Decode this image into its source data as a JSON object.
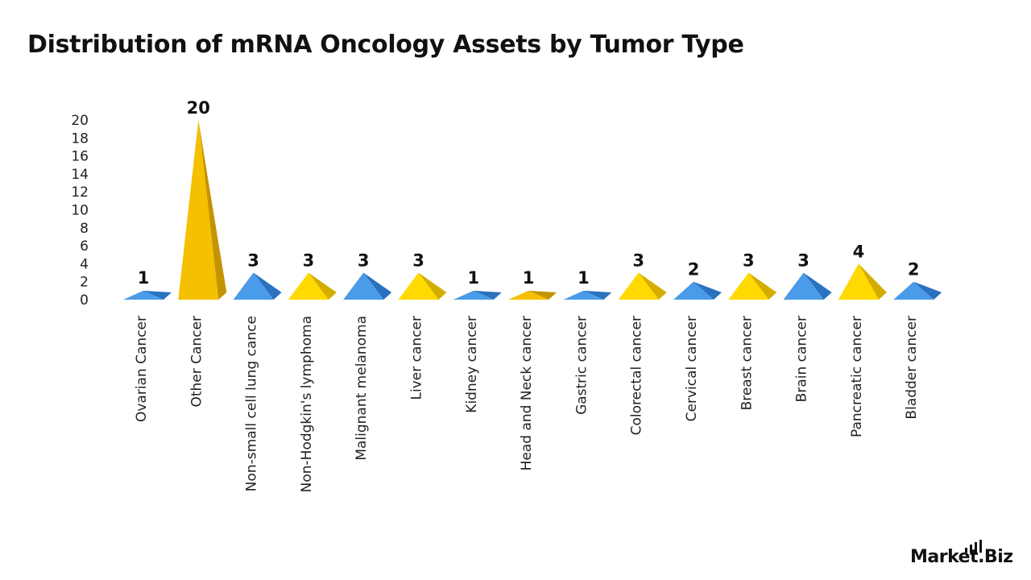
{
  "chart_data": {
    "type": "bar",
    "title": "Distribution of mRNA Oncology Assets by Tumor Type",
    "categories": [
      "Ovarian Cancer",
      "Other Cancer",
      "Non-small cell lung cance",
      "Non-Hodgkin's lymphoma",
      "Malignant melanoma",
      "Liver cancer",
      "Kidney cancer",
      "Head and Neck cancer",
      "Gastric cancer",
      "Colorectal cancer",
      "Cervical cancer",
      "Breast cancer",
      "Brain cancer",
      "Pancreatic cancer",
      "Bladder cancer"
    ],
    "values": [
      1,
      20,
      3,
      3,
      3,
      3,
      1,
      1,
      1,
      3,
      2,
      3,
      3,
      4,
      2
    ],
    "colors": [
      "blue",
      "gold",
      "blue",
      "yellow",
      "blue",
      "yellow",
      "blue",
      "gold",
      "blue",
      "yellow",
      "blue",
      "yellow",
      "blue",
      "yellow",
      "blue"
    ],
    "palette": {
      "blue": {
        "light": "#4a9be8",
        "dark": "#2a72bf"
      },
      "gold": {
        "light": "#f5c000",
        "dark": "#c49300"
      },
      "yellow": {
        "light": "#ffd900",
        "dark": "#d4ad00"
      }
    },
    "ylim": [
      0,
      20
    ],
    "yticks": [
      0,
      2,
      4,
      6,
      8,
      10,
      12,
      14,
      16,
      18,
      20
    ],
    "xlabel": "",
    "ylabel": "",
    "grid": false,
    "legend": "none",
    "data_labels": true,
    "shape": "pyramid"
  },
  "branding": {
    "logo_text": "Market.Biz",
    "logo_icon": "signal-bars-icon"
  }
}
